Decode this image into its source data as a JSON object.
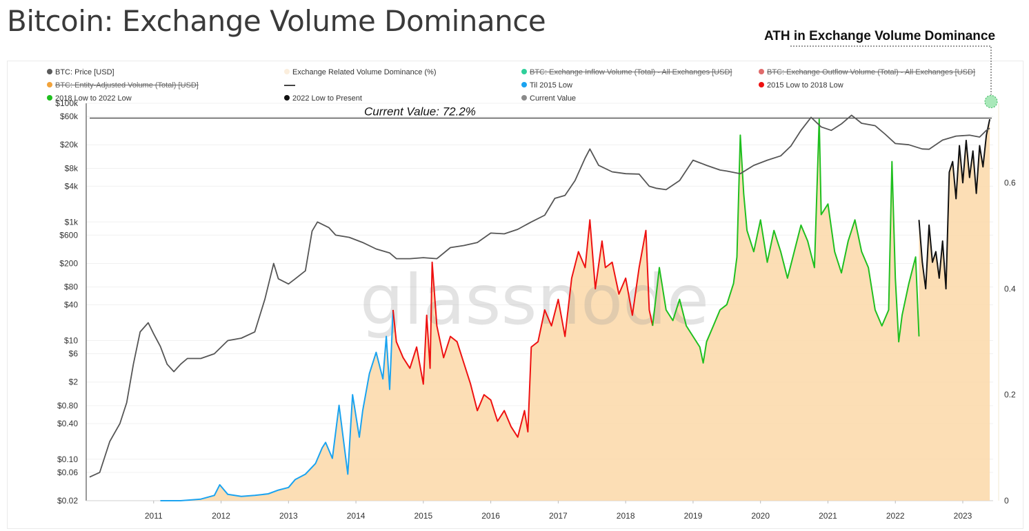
{
  "title": "Bitcoin: Exchange Volume Dominance",
  "ath_label": "ATH in Exchange Volume Dominance",
  "watermark": "glassnode",
  "legend": [
    {
      "label": "BTC: Price [USD]",
      "color": "#5a5a5a",
      "marker": "dot",
      "disabled": false
    },
    {
      "label": "Exchange Related Volume Dominance (%)",
      "color": "#fbeedd",
      "marker": "dot",
      "disabled": false
    },
    {
      "label": "BTC: Exchange Inflow Volume (Total) - All Exchanges [USD]",
      "color": "#2fcf9a",
      "marker": "dot",
      "disabled": true
    },
    {
      "label": "BTC: Exchange Outflow Volume (Total) - All Exchanges [USD]",
      "color": "#e06b6b",
      "marker": "dot",
      "disabled": true
    },
    {
      "label": "BTC: Entity-Adjusted Volume (Total) [USD]",
      "color": "#f2a33a",
      "marker": "dot",
      "disabled": true
    },
    {
      "label": "",
      "color": "#444444",
      "marker": "line",
      "disabled": false
    },
    {
      "label": "Til 2015 Low",
      "color": "#1aa3f0",
      "marker": "dot",
      "disabled": false
    },
    {
      "label": "2015 Low to 2018 Low",
      "color": "#ee1111",
      "marker": "dot",
      "disabled": false
    },
    {
      "label": "2018 Low to 2022 Low",
      "color": "#1fbf1f",
      "marker": "dot",
      "disabled": false
    },
    {
      "label": "2022 Low to Present",
      "color": "#111111",
      "marker": "dot",
      "disabled": false
    },
    {
      "label": "Current Value",
      "color": "#8a8a8a",
      "marker": "dot",
      "disabled": false
    }
  ],
  "chart_data": {
    "type": "line",
    "title": "Bitcoin: Exchange Volume Dominance",
    "x_ticks": [
      "2011",
      "2012",
      "2013",
      "2014",
      "2015",
      "2016",
      "2017",
      "2018",
      "2019",
      "2020",
      "2021",
      "2022",
      "2023"
    ],
    "y_left": {
      "scale": "log",
      "ticks": [
        "$0.02",
        "$0.06",
        "$0.10",
        "$0.40",
        "$0.80",
        "$2",
        "$6",
        "$10",
        "$40",
        "$80",
        "$200",
        "$600",
        "$1k",
        "$4k",
        "$8k",
        "$20k",
        "$60k",
        "$100k"
      ],
      "tick_values": [
        0.02,
        0.06,
        0.1,
        0.4,
        0.8,
        2,
        6,
        10,
        40,
        80,
        200,
        600,
        1000,
        4000,
        8000,
        20000,
        60000,
        100000
      ],
      "range": [
        0.02,
        100000
      ]
    },
    "y_right": {
      "ticks": [
        "0",
        "0.2",
        "0.4",
        "0.6"
      ],
      "tick_values": [
        0,
        0.2,
        0.4,
        0.6
      ],
      "range": [
        0,
        0.75
      ]
    },
    "annotation": "Current Value: 72.2%",
    "current_value": 0.722,
    "price_series": {
      "name": "BTC: Price [USD]",
      "x": [
        2010.55,
        2010.7,
        2010.85,
        2011.0,
        2011.1,
        2011.2,
        2011.3,
        2011.42,
        2011.5,
        2011.6,
        2011.7,
        2011.8,
        2011.9,
        2012.0,
        2012.2,
        2012.4,
        2012.6,
        2012.8,
        2013.0,
        2013.15,
        2013.28,
        2013.35,
        2013.5,
        2013.6,
        2013.75,
        2013.85,
        2013.93,
        2014.1,
        2014.2,
        2014.4,
        2014.6,
        2014.8,
        2015.0,
        2015.1,
        2015.3,
        2015.5,
        2015.7,
        2015.9,
        2016.1,
        2016.3,
        2016.5,
        2016.7,
        2016.9,
        2017.1,
        2017.3,
        2017.45,
        2017.6,
        2017.75,
        2017.9,
        2017.97,
        2018.1,
        2018.3,
        2018.5,
        2018.7,
        2018.85,
        2018.95,
        2019.1,
        2019.3,
        2019.5,
        2019.7,
        2019.9,
        2020.0,
        2020.2,
        2020.4,
        2020.6,
        2020.8,
        2020.95,
        2021.1,
        2021.25,
        2021.4,
        2021.55,
        2021.7,
        2021.85,
        2022.0,
        2022.2,
        2022.35,
        2022.5,
        2022.7,
        2022.9,
        2023.0,
        2023.2,
        2023.4,
        2023.6,
        2023.75,
        2023.85,
        2023.9
      ],
      "y": [
        0.05,
        0.06,
        0.2,
        0.4,
        0.9,
        4,
        14,
        20,
        13,
        8,
        4,
        3,
        4,
        5,
        5,
        6,
        10,
        11,
        14,
        50,
        200,
        110,
        90,
        110,
        150,
        700,
        1000,
        800,
        600,
        550,
        450,
        350,
        300,
        240,
        240,
        250,
        240,
        370,
        400,
        450,
        650,
        630,
        750,
        1000,
        1300,
        2500,
        2800,
        5000,
        12000,
        17000,
        9000,
        7000,
        6500,
        6400,
        4000,
        3700,
        3500,
        5000,
        11000,
        9000,
        7500,
        7200,
        6500,
        9000,
        11000,
        13000,
        19000,
        35000,
        58000,
        40000,
        35000,
        45000,
        63000,
        46000,
        42000,
        30000,
        21000,
        20000,
        17000,
        16800,
        24000,
        28000,
        29000,
        27000,
        35000,
        38000
      ]
    },
    "dominance_series": [
      {
        "name": "Til 2015 Low",
        "x": [
          2011.6,
          2011.9,
          2012.2,
          2012.4,
          2012.48,
          2012.6,
          2012.8,
          2013.0,
          2013.2,
          2013.35,
          2013.5,
          2013.6,
          2013.75,
          2013.9,
          2014.0,
          2014.05,
          2014.15,
          2014.25,
          2014.3,
          2014.38,
          2014.45,
          2014.55,
          2014.6,
          2014.7,
          2014.8,
          2014.9,
          2014.95,
          2015.0,
          2015.05
        ],
        "y": [
          0.0,
          0.0,
          0.003,
          0.01,
          0.03,
          0.012,
          0.008,
          0.01,
          0.013,
          0.02,
          0.025,
          0.04,
          0.05,
          0.07,
          0.1,
          0.11,
          0.08,
          0.18,
          0.13,
          0.05,
          0.2,
          0.12,
          0.17,
          0.24,
          0.28,
          0.23,
          0.31,
          0.21,
          0.36
        ]
      },
      {
        "name": "2015 Low to 2018 Low",
        "x": [
          2015.05,
          2015.1,
          2015.2,
          2015.3,
          2015.4,
          2015.5,
          2015.55,
          2015.6,
          2015.63,
          2015.7,
          2015.8,
          2015.9,
          2016.0,
          2016.1,
          2016.2,
          2016.3,
          2016.4,
          2016.5,
          2016.6,
          2016.7,
          2016.8,
          2016.9,
          2017.0,
          2017.05,
          2017.1,
          2017.2,
          2017.3,
          2017.4,
          2017.5,
          2017.6,
          2017.7,
          2017.8,
          2017.9,
          2017.97,
          2018.05,
          2018.15,
          2018.2,
          2018.3,
          2018.4,
          2018.5,
          2018.6,
          2018.7,
          2018.8,
          2018.85,
          2018.9
        ],
        "y": [
          0.36,
          0.3,
          0.27,
          0.25,
          0.29,
          0.22,
          0.35,
          0.25,
          0.45,
          0.33,
          0.27,
          0.31,
          0.3,
          0.26,
          0.22,
          0.17,
          0.2,
          0.19,
          0.15,
          0.17,
          0.14,
          0.12,
          0.17,
          0.13,
          0.29,
          0.3,
          0.36,
          0.33,
          0.38,
          0.31,
          0.42,
          0.47,
          0.44,
          0.53,
          0.4,
          0.49,
          0.44,
          0.45,
          0.39,
          0.42,
          0.35,
          0.44,
          0.51,
          0.36,
          0.33
        ]
      },
      {
        "name": "2018 Low to 2022 Low",
        "x": [
          2018.9,
          2019.0,
          2019.1,
          2019.2,
          2019.3,
          2019.4,
          2019.5,
          2019.6,
          2019.65,
          2019.7,
          2019.8,
          2019.9,
          2020.0,
          2020.1,
          2020.15,
          2020.2,
          2020.25,
          2020.3,
          2020.4,
          2020.5,
          2020.6,
          2020.7,
          2020.8,
          2020.9,
          2021.0,
          2021.1,
          2021.2,
          2021.3,
          2021.37,
          2021.4,
          2021.5,
          2021.6,
          2021.7,
          2021.8,
          2021.9,
          2022.0,
          2022.1,
          2022.2,
          2022.3,
          2022.4,
          2022.45,
          2022.5,
          2022.55,
          2022.6,
          2022.7,
          2022.8,
          2022.85
        ],
        "y": [
          0.33,
          0.44,
          0.36,
          0.34,
          0.38,
          0.33,
          0.31,
          0.29,
          0.26,
          0.3,
          0.33,
          0.36,
          0.37,
          0.41,
          0.46,
          0.69,
          0.58,
          0.51,
          0.47,
          0.53,
          0.45,
          0.51,
          0.47,
          0.42,
          0.47,
          0.52,
          0.49,
          0.44,
          0.72,
          0.54,
          0.56,
          0.47,
          0.43,
          0.49,
          0.53,
          0.47,
          0.44,
          0.36,
          0.33,
          0.36,
          0.64,
          0.42,
          0.3,
          0.35,
          0.41,
          0.46,
          0.31
        ]
      },
      {
        "name": "2022 Low to Present",
        "x": [
          2022.85,
          2022.9,
          2022.95,
          2023.0,
          2023.05,
          2023.1,
          2023.15,
          2023.2,
          2023.25,
          2023.3,
          2023.35,
          2023.4,
          2023.45,
          2023.5,
          2023.55,
          2023.6,
          2023.65,
          2023.7,
          2023.75,
          2023.8,
          2023.85,
          2023.9
        ],
        "y": [
          0.53,
          0.45,
          0.4,
          0.52,
          0.45,
          0.47,
          0.42,
          0.49,
          0.4,
          0.62,
          0.64,
          0.57,
          0.67,
          0.6,
          0.68,
          0.61,
          0.66,
          0.58,
          0.67,
          0.63,
          0.69,
          0.72
        ]
      }
    ]
  }
}
